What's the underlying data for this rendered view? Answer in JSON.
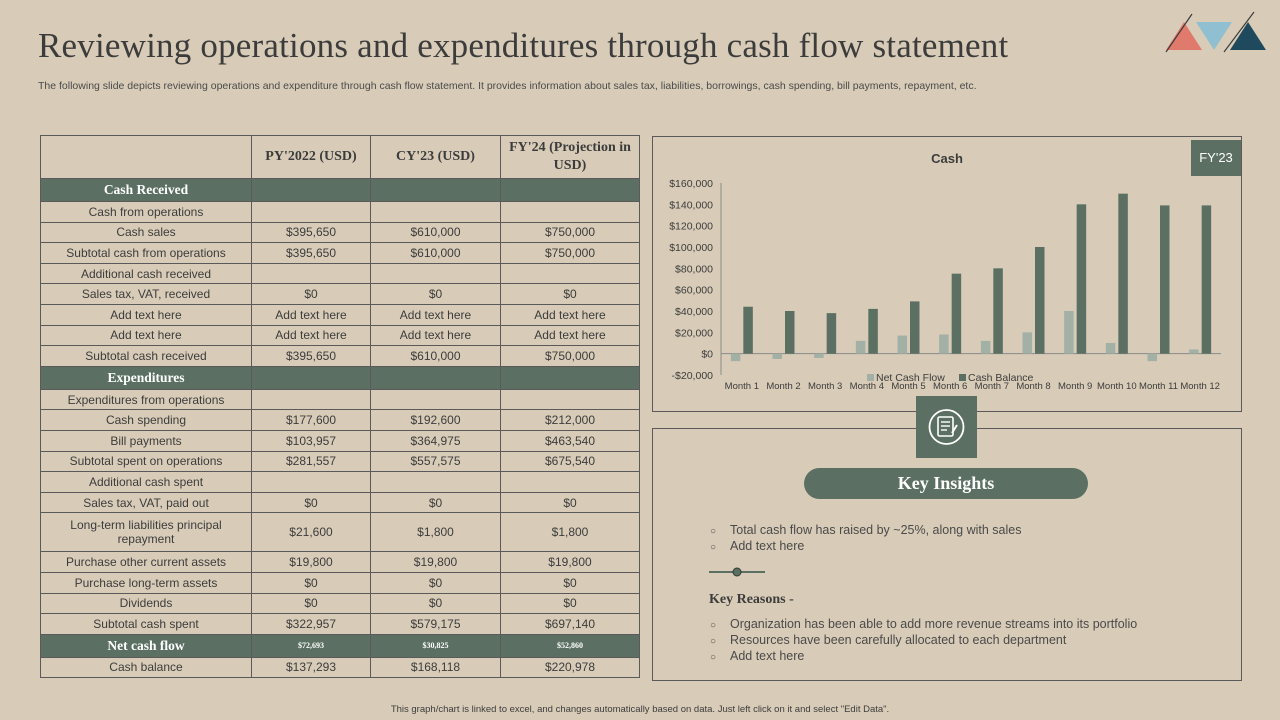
{
  "header": {
    "title": "Reviewing operations and expenditures through cash flow statement",
    "subtitle": "The following slide depicts reviewing operations and expenditure through cash flow statement. It provides information about sales tax, liabilities, borrowings, cash spending, bill payments, repayment, etc."
  },
  "colors": {
    "accent": "#5b7063",
    "light_series": "#a3b0a6",
    "background": "#d8ccb8",
    "logo_red": "#e07a6c",
    "logo_blue": "#8fbfd0",
    "logo_navy": "#1f4a5e"
  },
  "table": {
    "columns": [
      "",
      "PY'2022 (USD)",
      "CY'23 (USD)",
      "FY'24 (Projection in USD)"
    ],
    "rows": [
      {
        "type": "section",
        "label": "Cash Received",
        "values": [
          "",
          "",
          ""
        ]
      },
      {
        "type": "row",
        "label": "Cash from operations",
        "values": [
          "",
          "",
          ""
        ]
      },
      {
        "type": "row",
        "label": "Cash sales",
        "values": [
          "$395,650",
          "$610,000",
          "$750,000"
        ]
      },
      {
        "type": "row",
        "label": "Subtotal cash from operations",
        "values": [
          "$395,650",
          "$610,000",
          "$750,000"
        ]
      },
      {
        "type": "row",
        "label": "Additional cash received",
        "values": [
          "",
          "",
          ""
        ]
      },
      {
        "type": "row",
        "label": "Sales tax, VAT,  received",
        "values": [
          "$0",
          "$0",
          "$0"
        ]
      },
      {
        "type": "row",
        "label": "Add text here",
        "values": [
          "Add text here",
          "Add text here",
          "Add text here"
        ]
      },
      {
        "type": "row",
        "label": "Add text here",
        "values": [
          "Add text here",
          "Add text here",
          "Add text here"
        ]
      },
      {
        "type": "row",
        "label": "Subtotal cash received",
        "values": [
          "$395,650",
          "$610,000",
          "$750,000"
        ]
      },
      {
        "type": "section",
        "label": "Expenditures",
        "values": [
          "",
          "",
          ""
        ]
      },
      {
        "type": "row",
        "label": "Expenditures from operations",
        "values": [
          "",
          "",
          ""
        ]
      },
      {
        "type": "row",
        "label": "Cash spending",
        "values": [
          "$177,600",
          "$192,600",
          "$212,000"
        ]
      },
      {
        "type": "row",
        "label": "Bill payments",
        "values": [
          "$103,957",
          "$364,975",
          "$463,540"
        ]
      },
      {
        "type": "row",
        "label": "Subtotal spent on operations",
        "values": [
          "$281,557",
          "$557,575",
          "$675,540"
        ]
      },
      {
        "type": "row",
        "label": "Additional cash spent",
        "values": [
          "",
          "",
          ""
        ]
      },
      {
        "type": "row",
        "label": "Sales tax, VAT,  paid out",
        "values": [
          "$0",
          "$0",
          "$0"
        ]
      },
      {
        "type": "row2",
        "label": "Long-term liabilities principal repayment",
        "values": [
          "$21,600",
          "$1,800",
          "$1,800"
        ]
      },
      {
        "type": "row",
        "label": "Purchase other current assets",
        "values": [
          "$19,800",
          "$19,800",
          "$19,800"
        ]
      },
      {
        "type": "row",
        "label": "Purchase long-term assets",
        "values": [
          "$0",
          "$0",
          "$0"
        ]
      },
      {
        "type": "row",
        "label": "Dividends",
        "values": [
          "$0",
          "$0",
          "$0"
        ]
      },
      {
        "type": "row",
        "label": "Subtotal cash spent",
        "values": [
          "$322,957",
          "$579,175",
          "$697,140"
        ]
      },
      {
        "type": "net",
        "label": "Net cash flow",
        "values": [
          "$72,693",
          "$30,825",
          "$52,860"
        ]
      },
      {
        "type": "row",
        "label": "Cash balance",
        "values": [
          "$137,293",
          "$168,118",
          "$220,978"
        ]
      }
    ]
  },
  "chart_data": {
    "type": "bar",
    "title": "Cash",
    "categories": [
      "Month 1",
      "Month 2",
      "Month 3",
      "Month 4",
      "Month 5",
      "Month 6",
      "Month 7",
      "Month 8",
      "Month 9",
      "Month 10",
      "Month 11",
      "Month 12"
    ],
    "series": [
      {
        "name": "Net Cash Flow",
        "values": [
          -7000,
          -5000,
          -4000,
          12000,
          17000,
          18000,
          12000,
          20000,
          40000,
          10000,
          -7000,
          4000
        ]
      },
      {
        "name": "Cash Balance",
        "values": [
          44000,
          40000,
          38000,
          42000,
          49000,
          75000,
          80000,
          100000,
          140000,
          150000,
          139000,
          139000
        ]
      }
    ],
    "ylim": [
      -20000,
      160000
    ],
    "yticks": [
      -20000,
      0,
      20000,
      40000,
      60000,
      80000,
      100000,
      120000,
      140000,
      160000
    ],
    "ytick_labels": [
      "-$20,000",
      "$0",
      "$20,000",
      "$40,000",
      "$60,000",
      "$80,000",
      "$100,000",
      "$120,000",
      "$140,000",
      "$160,000"
    ],
    "legend": "bottom",
    "grid": false
  },
  "chart_tag": "FY'23",
  "insights": {
    "title": "Key Insights",
    "icon": "notepad-icon",
    "items": [
      "Total cash flow has raised by ~25%, along with sales",
      "Add text here"
    ],
    "reasons_title": "Key Reasons -",
    "reasons": [
      "Organization has been able to add more revenue  streams into its portfolio",
      "Resources have been carefully allocated to each department",
      "Add text here"
    ],
    "bullet": "○"
  },
  "footer": "This graph/chart is linked to excel, and changes automatically based on data. Just left click on it and select \"Edit Data\"."
}
